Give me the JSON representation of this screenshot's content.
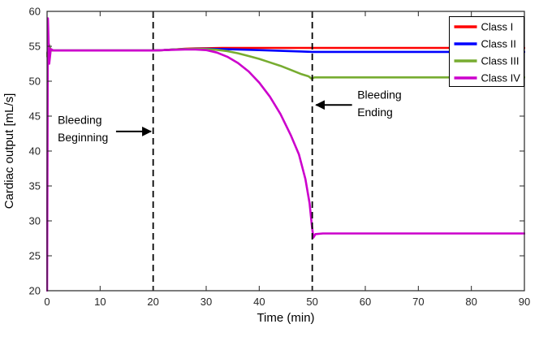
{
  "figure": {
    "xlabel": "Time (min)",
    "ylabel": "Cardiac output [mL/s]"
  },
  "chart_data": {
    "type": "line",
    "title": "",
    "xlabel": "Time (min)",
    "ylabel": "Cardiac output [mL/s]",
    "xlim": [
      0,
      90
    ],
    "ylim": [
      20,
      60
    ],
    "xticks": [
      0,
      10,
      20,
      30,
      40,
      50,
      60,
      70,
      80,
      90
    ],
    "yticks": [
      20,
      25,
      30,
      35,
      40,
      45,
      50,
      55,
      60
    ],
    "grid": false,
    "legend_position": "top-right",
    "frame_color": "#262626",
    "event_line_color": "#000000",
    "series": [
      {
        "name": "Class I",
        "color": "#ff0000",
        "x": [
          0,
          0.3,
          0.7,
          2,
          5,
          10,
          15,
          20,
          22,
          24,
          26,
          28,
          30,
          33,
          36,
          40,
          45,
          50,
          60,
          70,
          80,
          90
        ],
        "y": [
          53.6,
          55.3,
          54.4,
          54.4,
          54.4,
          54.4,
          54.4,
          54.4,
          54.45,
          54.55,
          54.65,
          54.7,
          54.72,
          54.75,
          54.76,
          54.77,
          54.77,
          54.77,
          54.77,
          54.77,
          54.77,
          54.77
        ]
      },
      {
        "name": "Class II",
        "color": "#0000ff",
        "x": [
          0,
          0.3,
          0.7,
          2,
          5,
          10,
          15,
          20,
          22,
          24,
          26,
          28,
          30,
          33,
          36,
          40,
          44,
          48,
          50,
          55,
          60,
          70,
          80,
          90
        ],
        "y": [
          53.6,
          55.3,
          54.4,
          54.4,
          54.4,
          54.4,
          54.4,
          54.4,
          54.45,
          54.55,
          54.6,
          54.65,
          54.65,
          54.6,
          54.55,
          54.45,
          54.35,
          54.25,
          54.2,
          54.2,
          54.2,
          54.2,
          54.2,
          54.2
        ]
      },
      {
        "name": "Class III",
        "color": "#77ac30",
        "x": [
          0,
          0.3,
          0.7,
          2,
          5,
          10,
          15,
          20,
          22,
          24,
          26,
          28,
          30,
          32,
          34,
          36,
          38,
          40,
          42,
          44,
          46,
          48,
          49.3,
          49.9,
          50.4,
          52,
          55,
          60,
          70,
          80,
          90
        ],
        "y": [
          53.6,
          55.3,
          54.4,
          54.4,
          54.4,
          54.4,
          54.4,
          54.4,
          54.45,
          54.55,
          54.6,
          54.65,
          54.6,
          54.5,
          54.3,
          54.0,
          53.6,
          53.2,
          52.7,
          52.2,
          51.6,
          51.0,
          50.7,
          50.35,
          50.55,
          50.55,
          50.55,
          50.55,
          50.55,
          50.55,
          50.55
        ]
      },
      {
        "name": "Class IV",
        "color": "#cc00cc",
        "x": [
          0,
          0.15,
          0.4,
          0.7,
          1.2,
          5,
          10,
          15,
          20,
          22,
          24,
          26,
          28,
          30,
          32,
          34,
          36,
          38,
          40,
          42,
          44,
          46,
          47.5,
          48.7,
          49.5,
          49.9,
          50.2,
          50.6,
          52,
          55,
          60,
          70,
          80,
          90
        ],
        "y": [
          20,
          59,
          52.5,
          54.6,
          54.4,
          54.4,
          54.4,
          54.4,
          54.4,
          54.45,
          54.5,
          54.55,
          54.55,
          54.45,
          54.1,
          53.5,
          52.6,
          51.4,
          49.8,
          47.8,
          45.3,
          42.2,
          39.5,
          36.0,
          32.5,
          29.5,
          27.6,
          28.1,
          28.2,
          28.2,
          28.2,
          28.2,
          28.2,
          28.2
        ]
      }
    ],
    "events": [
      {
        "label": "Bleeding Beginning",
        "x": 20
      },
      {
        "label": "Bleeding Ending",
        "x": 50
      }
    ],
    "annotations": [
      {
        "name": "bleeding-beginning",
        "arrow": {
          "from": [
            13.0,
            42.8
          ],
          "to": [
            19.6,
            42.8
          ]
        },
        "texts": [
          {
            "t": "Bleeding",
            "x": 2.0,
            "y": 43.9,
            "anchor": "start"
          },
          {
            "t": "Beginning",
            "x": 2.0,
            "y": 41.4,
            "anchor": "start"
          }
        ]
      },
      {
        "name": "bleeding-ending",
        "arrow": {
          "from": [
            57.5,
            46.6
          ],
          "to": [
            50.7,
            46.6
          ]
        },
        "texts": [
          {
            "t": "Bleeding",
            "x": 58.5,
            "y": 47.5,
            "anchor": "start"
          },
          {
            "t": "Ending",
            "x": 58.5,
            "y": 45.0,
            "anchor": "start"
          }
        ]
      }
    ],
    "legend": {
      "entries": [
        "Class I",
        "Class II",
        "Class III",
        "Class IV"
      ],
      "border_color": "#000000",
      "background": "#ffffff"
    }
  }
}
